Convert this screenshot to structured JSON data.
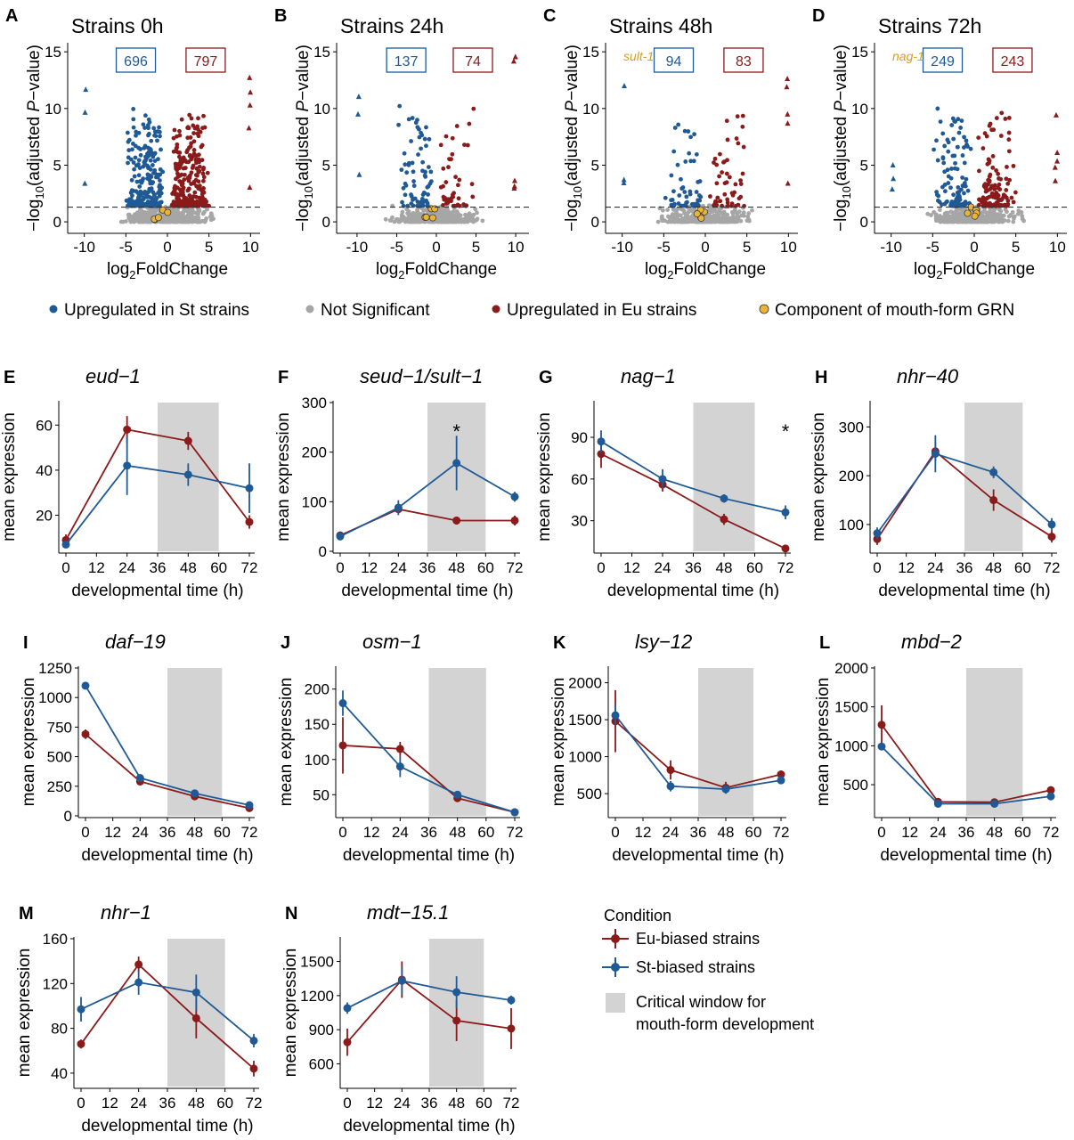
{
  "colors": {
    "eu": "#8b1a1a",
    "st": "#1f5a96",
    "ns": "#a6a6a6",
    "grn": "#e8b43a",
    "window": "#d3d3d3"
  },
  "volcano_legend": {
    "items": [
      {
        "label": "Upregulated in St strains",
        "color": "#1f5a96"
      },
      {
        "label": "Not Significant",
        "color": "#a6a6a6"
      },
      {
        "label": "Upregulated in Eu strains",
        "color": "#8b1a1a"
      },
      {
        "label": "Component of mouth-form GRN",
        "color": "#e8b43a"
      }
    ]
  },
  "condition_legend": {
    "title": "Condition",
    "eu_label": "Eu-biased strains",
    "st_label": "St-biased strains",
    "window_label_1": "Critical window for",
    "window_label_2": "mouth-form development"
  },
  "chart_data": [
    {
      "id": "A",
      "type": "scatter",
      "title": "Strains 0h",
      "xlabel": "log2FoldChange",
      "ylabel": "−log10(adjusted P−value)",
      "xlim": [
        -10.5,
        10.5
      ],
      "ylim": [
        -0.7,
        15.8
      ],
      "xticks": [
        -10,
        -5,
        0,
        5,
        10
      ],
      "yticks": [
        0,
        5,
        10,
        15
      ],
      "threshold": 1.3,
      "down_count": "696",
      "up_count": "797",
      "gene_label": "",
      "n_down": 240,
      "n_up": 270,
      "n_ns": 450
    },
    {
      "id": "B",
      "type": "scatter",
      "title": "Strains 24h",
      "xlabel": "log2FoldChange",
      "ylabel": "−log10(adjusted P−value)",
      "xlim": [
        -11,
        11
      ],
      "ylim": [
        -0.7,
        15.8
      ],
      "xticks": [
        -10,
        -5,
        0,
        5,
        10
      ],
      "yticks": [
        0,
        5,
        10,
        15
      ],
      "threshold": 1.3,
      "down_count": "137",
      "up_count": "74",
      "gene_label": "",
      "n_down": 70,
      "n_up": 45,
      "n_ns": 420
    },
    {
      "id": "C",
      "type": "scatter",
      "title": "Strains 48h",
      "xlabel": "log2FoldChange",
      "ylabel": "−log10(adjusted P−value)",
      "xlim": [
        -10.5,
        10.5
      ],
      "ylim": [
        -0.7,
        15.8
      ],
      "xticks": [
        -10,
        -5,
        0,
        5,
        10
      ],
      "yticks": [
        0,
        5,
        10,
        15
      ],
      "threshold": 1.3,
      "down_count": "94",
      "up_count": "83",
      "gene_label": "sult-1",
      "n_down": 55,
      "n_up": 50,
      "n_ns": 400
    },
    {
      "id": "D",
      "type": "scatter",
      "title": "Strains 72h",
      "xlabel": "log2FoldChange",
      "ylabel": "−log10(adjusted P−value)",
      "xlim": [
        -10.5,
        10.5
      ],
      "ylim": [
        -0.7,
        15.8
      ],
      "xticks": [
        -10,
        -5,
        0,
        5,
        10
      ],
      "yticks": [
        0,
        5,
        10,
        15
      ],
      "threshold": 1.3,
      "down_count": "249",
      "up_count": "243",
      "gene_label": "nag-1",
      "n_down": 110,
      "n_up": 130,
      "n_ns": 420
    },
    {
      "id": "E",
      "type": "line",
      "title": "eud−1",
      "xlabel": "developmental time (h)",
      "ylabel": "mean expression",
      "x": [
        0,
        24,
        48,
        72
      ],
      "ylim": [
        4,
        70
      ],
      "yticks": [
        20,
        40,
        60
      ],
      "star": "",
      "series": [
        {
          "name": "Eu-biased strains",
          "values": [
            9,
            58,
            53,
            17
          ],
          "err": [
            2.5,
            6,
            4,
            3
          ]
        },
        {
          "name": "St-biased strains",
          "values": [
            7,
            42,
            38,
            32
          ],
          "err": [
            1.5,
            13,
            5,
            11
          ]
        }
      ]
    },
    {
      "id": "F",
      "type": "line",
      "title": "seud−1/sult−1",
      "xlabel": "developmental time (h)",
      "ylabel": "mean expression",
      "x": [
        0,
        24,
        48,
        72
      ],
      "ylim": [
        0,
        300
      ],
      "yticks": [
        0,
        100,
        200,
        300
      ],
      "star": "*",
      "star_x": 48,
      "series": [
        {
          "name": "Eu-biased strains",
          "values": [
            32,
            85,
            62,
            62
          ],
          "err": [
            5,
            8,
            8,
            10
          ]
        },
        {
          "name": "St-biased strains",
          "values": [
            30,
            88,
            178,
            110
          ],
          "err": [
            8,
            15,
            55,
            10
          ]
        }
      ]
    },
    {
      "id": "G",
      "type": "line",
      "title": "nag−1",
      "xlabel": "developmental time (h)",
      "ylabel": "mean expression",
      "x": [
        0,
        24,
        48,
        72
      ],
      "ylim": [
        8,
        115
      ],
      "yticks": [
        30,
        60,
        90
      ],
      "star": "*",
      "star_x": 72,
      "series": [
        {
          "name": "Eu-biased strains",
          "values": [
            78,
            56,
            31,
            10
          ],
          "err": [
            10,
            5,
            4,
            1
          ]
        },
        {
          "name": "St-biased strains",
          "values": [
            87,
            60,
            46,
            36
          ],
          "err": [
            8,
            7,
            3,
            5
          ]
        }
      ]
    },
    {
      "id": "H",
      "type": "line",
      "title": "nhr−40",
      "xlabel": "developmental time (h)",
      "ylabel": "mean expression",
      "x": [
        0,
        24,
        48,
        72
      ],
      "ylim": [
        45,
        350
      ],
      "yticks": [
        100,
        200,
        300
      ],
      "star": "",
      "series": [
        {
          "name": "Eu-biased strains",
          "values": [
            70,
            250,
            150,
            75
          ],
          "err": [
            12,
            20,
            22,
            12
          ]
        },
        {
          "name": "St-biased strains",
          "values": [
            82,
            245,
            207,
            100
          ],
          "err": [
            12,
            38,
            12,
            13
          ]
        }
      ]
    },
    {
      "id": "I",
      "type": "line",
      "title": "daf−19",
      "xlabel": "developmental time (h)",
      "ylabel": "mean expression",
      "x": [
        0,
        24,
        48,
        72
      ],
      "ylim": [
        0,
        1250
      ],
      "yticks": [
        0,
        250,
        500,
        750,
        1000,
        1250
      ],
      "star": "",
      "series": [
        {
          "name": "Eu-biased strains",
          "values": [
            690,
            290,
            165,
            65
          ],
          "err": [
            40,
            10,
            10,
            5
          ]
        },
        {
          "name": "St-biased strains",
          "values": [
            1100,
            320,
            190,
            90
          ],
          "err": [
            30,
            10,
            10,
            5
          ]
        }
      ]
    },
    {
      "id": "J",
      "type": "line",
      "title": "osm−1",
      "xlabel": "developmental time (h)",
      "ylabel": "mean expression",
      "x": [
        0,
        24,
        48,
        72
      ],
      "ylim": [
        20,
        230
      ],
      "yticks": [
        50,
        100,
        150,
        200
      ],
      "star": "",
      "series": [
        {
          "name": "Eu-biased strains",
          "values": [
            120,
            115,
            45,
            25
          ],
          "err": [
            40,
            10,
            3,
            2
          ]
        },
        {
          "name": "St-biased strains",
          "values": [
            180,
            90,
            50,
            25
          ],
          "err": [
            18,
            15,
            4,
            2
          ]
        }
      ]
    },
    {
      "id": "K",
      "type": "line",
      "title": "lsy−12",
      "xlabel": "developmental time (h)",
      "ylabel": "mean expression",
      "x": [
        0,
        24,
        48,
        72
      ],
      "ylim": [
        200,
        2200
      ],
      "yticks": [
        500,
        1000,
        1500,
        2000
      ],
      "star": "",
      "series": [
        {
          "name": "Eu-biased strains",
          "values": [
            1480,
            820,
            580,
            760
          ],
          "err": [
            420,
            130,
            80,
            40
          ]
        },
        {
          "name": "St-biased strains",
          "values": [
            1560,
            600,
            560,
            680
          ],
          "err": [
            130,
            70,
            60,
            40
          ]
        }
      ]
    },
    {
      "id": "L",
      "type": "line",
      "title": "mbd−2",
      "xlabel": "developmental time (h)",
      "ylabel": "mean expression",
      "x": [
        0,
        24,
        48,
        72
      ],
      "ylim": [
        100,
        2000
      ],
      "yticks": [
        500,
        1000,
        1500,
        2000
      ],
      "star": "",
      "series": [
        {
          "name": "Eu-biased strains",
          "values": [
            1270,
            280,
            275,
            430
          ],
          "err": [
            250,
            20,
            25,
            30
          ]
        },
        {
          "name": "St-biased strains",
          "values": [
            990,
            255,
            255,
            350
          ],
          "err": [
            40,
            20,
            20,
            50
          ]
        }
      ]
    },
    {
      "id": "M",
      "type": "line",
      "title": "nhr−1",
      "xlabel": "developmental time (h)",
      "ylabel": "mean expression",
      "x": [
        0,
        24,
        48,
        72
      ],
      "ylim": [
        28,
        160
      ],
      "yticks": [
        40,
        80,
        120,
        160
      ],
      "star": "",
      "series": [
        {
          "name": "Eu-biased strains",
          "values": [
            66,
            137,
            89,
            44
          ],
          "err": [
            4,
            7,
            18,
            7
          ]
        },
        {
          "name": "St-biased strains",
          "values": [
            97,
            121,
            112,
            69
          ],
          "err": [
            11,
            11,
            16,
            6
          ]
        }
      ]
    },
    {
      "id": "N",
      "type": "line",
      "title": "mdt−15.1",
      "xlabel": "developmental time (h)",
      "ylabel": "mean expression",
      "x": [
        0,
        24,
        48,
        72
      ],
      "ylim": [
        400,
        1700
      ],
      "yticks": [
        600,
        900,
        1200,
        1500
      ],
      "star": "",
      "series": [
        {
          "name": "Eu-biased strains",
          "values": [
            790,
            1340,
            980,
            910
          ],
          "err": [
            120,
            160,
            180,
            180
          ]
        },
        {
          "name": "St-biased strains",
          "values": [
            1090,
            1330,
            1230,
            1160
          ],
          "err": [
            50,
            120,
            140,
            40
          ]
        }
      ]
    }
  ]
}
